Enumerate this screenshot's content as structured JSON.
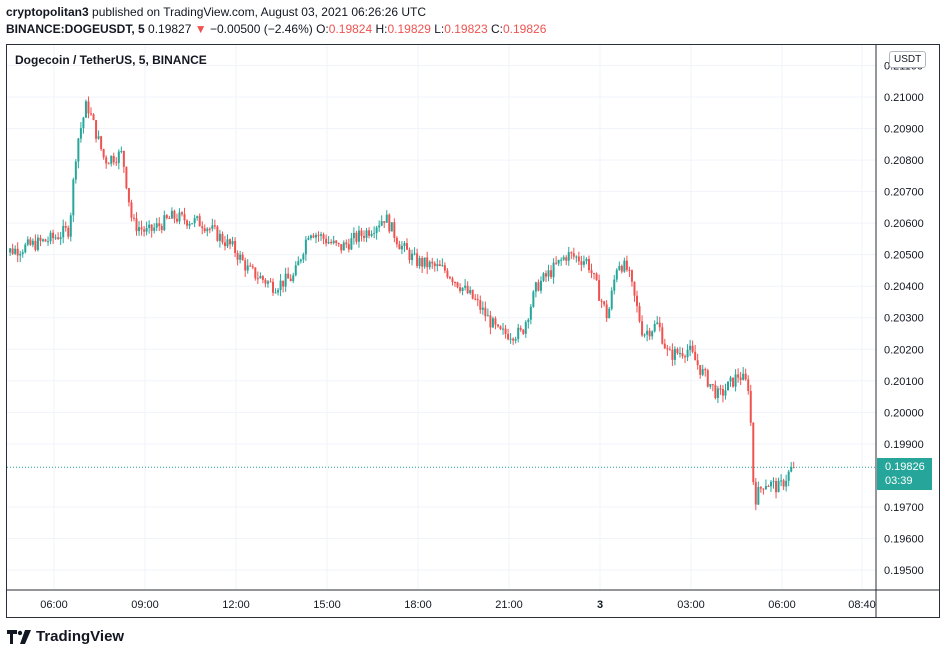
{
  "header": {
    "author": "cryptopolitan3",
    "published_text": "published on TradingView.com, August 03, 2021 06:26:26 UTC",
    "symbol": "BINANCE:DOGEUSDT, 5",
    "last": "0.19827",
    "change_arrow": "▼",
    "change": "−0.00500 (−2.46%)",
    "o_label": "O:",
    "o_value": "0.19824",
    "h_label": "H:",
    "h_value": "0.19829",
    "l_label": "L:",
    "l_value": "0.19823",
    "c_label": "C:",
    "c_value": "0.19826"
  },
  "legend": "Dogecoin / TetherUS, 5, BINANCE",
  "currency_badge": "USDT",
  "price_tag": {
    "price": "0.19826",
    "countdown": "03:39"
  },
  "branding": {
    "name": "TradingView"
  },
  "colors": {
    "up": "#26a69a",
    "down": "#ef5350",
    "grid": "#f0f3fa",
    "text": "#131722"
  },
  "chart_data": {
    "type": "candlestick",
    "title": "Dogecoin / TetherUS, 5, BINANCE",
    "x_ticks": [
      "06:00",
      "09:00",
      "12:00",
      "15:00",
      "18:00",
      "21:00",
      "3",
      "03:00",
      "06:00",
      "08:40"
    ],
    "y_ticks": [
      "0.21000",
      "0.20900",
      "0.20800",
      "0.20700",
      "0.20600",
      "0.20500",
      "0.20400",
      "0.20300",
      "0.20200",
      "0.20100",
      "0.20000",
      "0.19900",
      "0.19700",
      "0.19600",
      "0.19500"
    ],
    "y_top_partial": "0.21100",
    "ylim": [
      0.1945,
      0.2113
    ],
    "interval": "5m",
    "last_price": 0.19826,
    "grid": true,
    "price_path": [
      {
        "time": "04:00",
        "price": 0.205
      },
      {
        "time": "05:00",
        "price": 0.2052
      },
      {
        "time": "06:00",
        "price": 0.2055
      },
      {
        "time": "06:35",
        "price": 0.2058
      },
      {
        "time": "06:50",
        "price": 0.2085
      },
      {
        "time": "07:10",
        "price": 0.2098
      },
      {
        "time": "07:45",
        "price": 0.208
      },
      {
        "time": "08:20",
        "price": 0.2082
      },
      {
        "time": "08:40",
        "price": 0.206
      },
      {
        "time": "09:10",
        "price": 0.2057
      },
      {
        "time": "10:00",
        "price": 0.2062
      },
      {
        "time": "11:00",
        "price": 0.206
      },
      {
        "time": "12:00",
        "price": 0.2052
      },
      {
        "time": "12:30",
        "price": 0.2045
      },
      {
        "time": "13:20",
        "price": 0.204
      },
      {
        "time": "14:00",
        "price": 0.2043
      },
      {
        "time": "14:30",
        "price": 0.2058
      },
      {
        "time": "15:30",
        "price": 0.2052
      },
      {
        "time": "16:00",
        "price": 0.2055
      },
      {
        "time": "16:30",
        "price": 0.2058
      },
      {
        "time": "17:00",
        "price": 0.2062
      },
      {
        "time": "17:30",
        "price": 0.2053
      },
      {
        "time": "18:00",
        "price": 0.2048
      },
      {
        "time": "19:00",
        "price": 0.2045
      },
      {
        "time": "20:00",
        "price": 0.2035
      },
      {
        "time": "20:45",
        "price": 0.2025
      },
      {
        "time": "21:30",
        "price": 0.2025
      },
      {
        "time": "22:00",
        "price": 0.204
      },
      {
        "time": "22:30",
        "price": 0.2045
      },
      {
        "time": "23:00",
        "price": 0.205
      },
      {
        "time": "23:40",
        "price": 0.2048
      },
      {
        "time": "00:20",
        "price": 0.203
      },
      {
        "time": "00:40",
        "price": 0.2048
      },
      {
        "time": "01:00",
        "price": 0.2045
      },
      {
        "time": "01:30",
        "price": 0.2025
      },
      {
        "time": "02:00",
        "price": 0.2028
      },
      {
        "time": "02:20",
        "price": 0.2018
      },
      {
        "time": "03:00",
        "price": 0.202
      },
      {
        "time": "03:30",
        "price": 0.2012
      },
      {
        "time": "04:00",
        "price": 0.2005
      },
      {
        "time": "04:40",
        "price": 0.2012
      },
      {
        "time": "05:00",
        "price": 0.2008
      },
      {
        "time": "05:10",
        "price": 0.1972
      },
      {
        "time": "05:30",
        "price": 0.1978
      },
      {
        "time": "06:00",
        "price": 0.1976
      },
      {
        "time": "06:26",
        "price": 0.19826
      }
    ]
  }
}
